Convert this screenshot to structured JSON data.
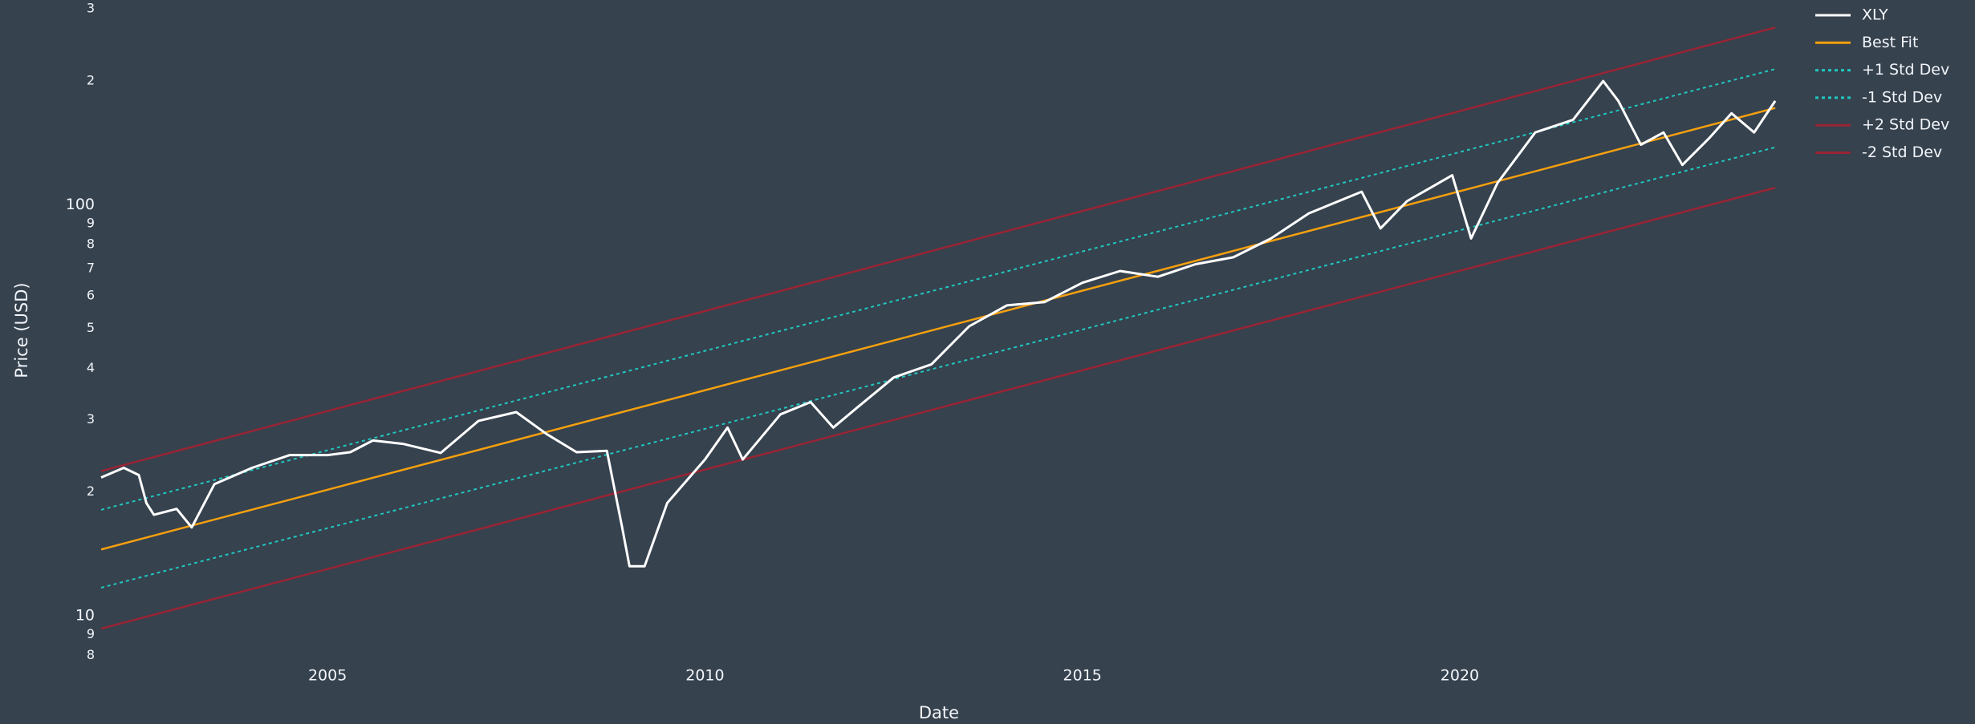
{
  "chart_data": {
    "type": "line",
    "xlabel": "Date",
    "ylabel": "Price (USD)",
    "yscale": "log",
    "xlim": [
      2002,
      2024.2
    ],
    "ylim": [
      7.5,
      315
    ],
    "xticks": [
      2005,
      2010,
      2015,
      2020
    ],
    "yticks": [
      {
        "value": 300,
        "label": "3"
      },
      {
        "value": 200,
        "label": "2"
      },
      100,
      {
        "value": 90,
        "label": "9"
      },
      {
        "value": 80,
        "label": "8"
      },
      {
        "value": 70,
        "label": "7"
      },
      {
        "value": 60,
        "label": "6"
      },
      {
        "value": 50,
        "label": "5"
      },
      {
        "value": 40,
        "label": "4"
      },
      {
        "value": 30,
        "label": "3"
      },
      {
        "value": 20,
        "label": "2"
      },
      10,
      9,
      8
    ],
    "grid": false,
    "legend": "outside-top-right",
    "background": "#36424e",
    "series": [
      {
        "name": "XLY",
        "color": "#ffffff",
        "dash": "solid",
        "x": [
          2002.0,
          2002.3,
          2002.5,
          2002.6,
          2002.7,
          2003.0,
          2003.2,
          2003.5,
          2004.0,
          2004.5,
          2005.0,
          2005.3,
          2005.6,
          2006.0,
          2006.5,
          2007.0,
          2007.5,
          2007.9,
          2008.3,
          2008.7,
          2008.9,
          2009.0,
          2009.2,
          2009.5,
          2010.0,
          2010.3,
          2010.5,
          2011.0,
          2011.4,
          2011.7,
          2012.0,
          2012.5,
          2013.0,
          2013.5,
          2014.0,
          2014.5,
          2015.0,
          2015.5,
          2016.0,
          2016.5,
          2017.0,
          2017.5,
          2018.0,
          2018.7,
          2018.95,
          2019.3,
          2019.9,
          2020.15,
          2020.5,
          2021.0,
          2021.5,
          2021.9,
          2022.1,
          2022.4,
          2022.7,
          2022.95,
          2023.3,
          2023.6,
          2023.9,
          2024.18
        ],
        "values": [
          21.7,
          22.9,
          22.0,
          18.8,
          17.6,
          18.2,
          16.4,
          20.9,
          22.9,
          24.6,
          24.6,
          25.0,
          26.7,
          26.2,
          24.9,
          29.8,
          31.3,
          27.7,
          25.0,
          25.2,
          16.5,
          13.2,
          13.2,
          18.8,
          24.0,
          28.7,
          24.0,
          30.9,
          33.1,
          28.7,
          31.9,
          38.0,
          40.9,
          50.6,
          56.9,
          58.0,
          64.6,
          69.0,
          66.8,
          71.7,
          74.5,
          82.8,
          95.3,
          107.6,
          87.6,
          102,
          118,
          82.8,
          113,
          150,
          161,
          200,
          179,
          140,
          150,
          125,
          145,
          167,
          150,
          179
        ]
      },
      {
        "name": "Best Fit",
        "color": "#f5a00f",
        "dash": "solid",
        "x": [
          2002.0,
          2024.18
        ],
        "values": [
          14.5,
          172
        ]
      },
      {
        "name": "+1 Std Dev",
        "color": "#1fc8c0",
        "dash": "dot",
        "x": [
          2002.0,
          2024.18
        ],
        "values": [
          18.1,
          214
        ]
      },
      {
        "name": "-1 Std Dev",
        "color": "#1fc8c0",
        "dash": "dot",
        "x": [
          2002.0,
          2024.18
        ],
        "values": [
          11.7,
          138
        ]
      },
      {
        "name": "+2 Std Dev",
        "color": "#9a2434",
        "dash": "solid",
        "x": [
          2002.0,
          2024.18
        ],
        "values": [
          22.5,
          270
        ]
      },
      {
        "name": "-2 Std Dev",
        "color": "#9a2434",
        "dash": "solid",
        "x": [
          2002.0,
          2024.18
        ],
        "values": [
          9.3,
          110
        ]
      }
    ]
  }
}
